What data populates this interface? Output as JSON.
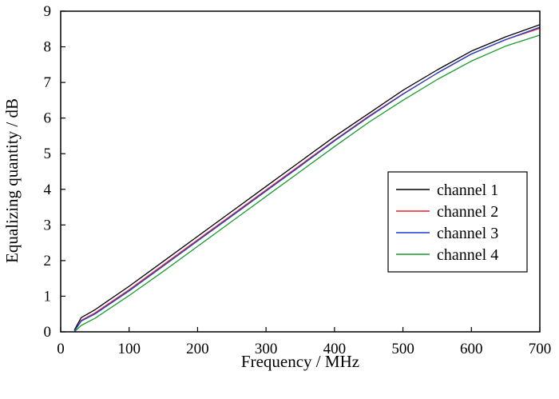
{
  "chart_data": {
    "type": "line",
    "title": "",
    "xlabel": "Frequency / MHz",
    "ylabel": "Equalizing quantity / dB",
    "xlim": [
      0,
      700
    ],
    "ylim": [
      0,
      9
    ],
    "xticks": [
      0,
      100,
      200,
      300,
      400,
      500,
      600,
      700
    ],
    "yticks": [
      0,
      1,
      2,
      3,
      4,
      5,
      6,
      7,
      8,
      9
    ],
    "grid": false,
    "legend_position": "right",
    "series": [
      {
        "name": "channel 1",
        "color": "#000000",
        "x": [
          20,
          30,
          50,
          100,
          150,
          200,
          250,
          300,
          350,
          400,
          450,
          500,
          550,
          600,
          650,
          700
        ],
        "y": [
          0.05,
          0.4,
          0.62,
          1.28,
          1.98,
          2.68,
          3.38,
          4.08,
          4.78,
          5.48,
          6.13,
          6.78,
          7.35,
          7.88,
          8.28,
          8.62
        ]
      },
      {
        "name": "channel 2",
        "color": "#e8202a",
        "x": [
          20,
          30,
          50,
          100,
          150,
          200,
          250,
          300,
          350,
          400,
          450,
          500,
          550,
          600,
          650,
          700
        ],
        "y": [
          0.02,
          0.32,
          0.53,
          1.18,
          1.88,
          2.58,
          3.28,
          3.98,
          4.68,
          5.38,
          6.05,
          6.68,
          7.26,
          7.8,
          8.2,
          8.52
        ]
      },
      {
        "name": "channel 3",
        "color": "#1a3fd1",
        "x": [
          20,
          30,
          50,
          100,
          150,
          200,
          250,
          300,
          350,
          400,
          450,
          500,
          550,
          600,
          650,
          700
        ],
        "y": [
          0.02,
          0.3,
          0.5,
          1.15,
          1.85,
          2.55,
          3.25,
          3.95,
          4.65,
          5.36,
          6.03,
          6.67,
          7.26,
          7.8,
          8.2,
          8.55
        ]
      },
      {
        "name": "channel 4",
        "color": "#179c2c",
        "x": [
          20,
          30,
          50,
          100,
          150,
          200,
          250,
          300,
          350,
          400,
          450,
          500,
          550,
          600,
          650,
          700
        ],
        "y": [
          0.0,
          0.18,
          0.38,
          1.02,
          1.7,
          2.4,
          3.1,
          3.8,
          4.5,
          5.2,
          5.88,
          6.5,
          7.08,
          7.6,
          8.02,
          8.33
        ]
      }
    ]
  }
}
